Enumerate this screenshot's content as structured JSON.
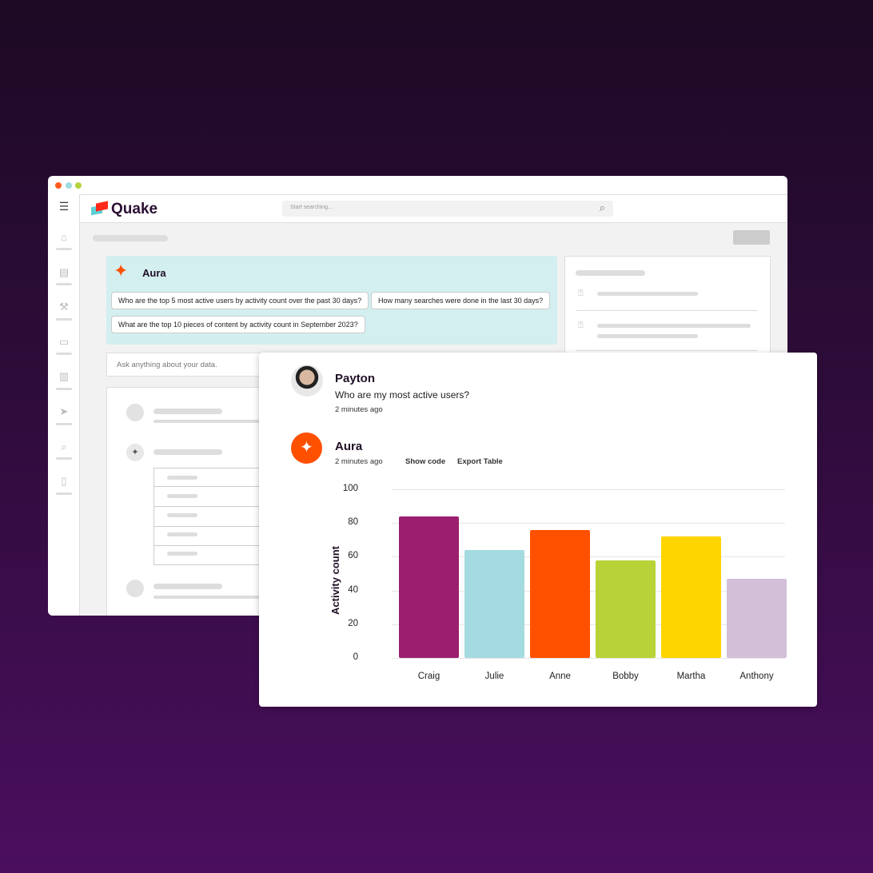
{
  "app": {
    "brand": "Quake",
    "search_placeholder": "Start searching..."
  },
  "window_dots": [
    "#ff5a1f",
    "#9fdbe0",
    "#b5d33d"
  ],
  "aura_panel": {
    "title": "Aura",
    "suggestions": [
      "Who are the top 5 most active users by activity count over the past 30 days?",
      "How many searches were done in the last 30 days?",
      "What are the top 10 pieces of content by activity count in September 2023?"
    ]
  },
  "ask_input": {
    "placeholder": "Ask anything about your data."
  },
  "chat": {
    "user": {
      "name": "Payton",
      "message": "Who are my most active users?",
      "time": "2 minutes ago"
    },
    "assistant": {
      "name": "Aura",
      "time": "2 minutes ago",
      "actions": [
        "Show code",
        "Export Table"
      ]
    }
  },
  "colors": {
    "accent": "#ff5000",
    "panel": "#d3eff0"
  },
  "chart_data": {
    "type": "bar",
    "categories": [
      "Craig",
      "Julie",
      "Anne",
      "Bobby",
      "Martha",
      "Anthony"
    ],
    "values": [
      84,
      64,
      76,
      58,
      72,
      47
    ],
    "colors": [
      "#9b1f6e",
      "#a4dbe0",
      "#ff5000",
      "#b7d337",
      "#ffd500",
      "#d3bfd8"
    ],
    "xlabel": "",
    "ylabel": "Activity count",
    "ylim": [
      0,
      100
    ],
    "yticks": [
      "0",
      "20",
      "40",
      "60",
      "80",
      "100"
    ],
    "grid": true
  }
}
